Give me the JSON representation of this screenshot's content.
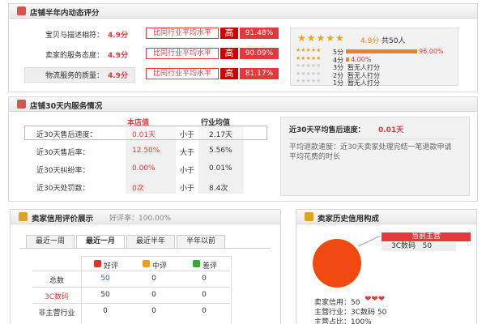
{
  "rating": {
    "title": "店铺半年内动态评分",
    "rows": [
      {
        "label": "宝贝与描述相符：",
        "score": "4.9分",
        "compare": "比同行业平均水平",
        "level": "高",
        "percent": "91.48%"
      },
      {
        "label": "卖家的服务态度：",
        "score": "4.9分",
        "compare": "比同行业平均水平",
        "level": "高",
        "percent": "90.09%"
      },
      {
        "label": "物流服务的质量：",
        "score": "4.9分",
        "compare": "比同行业平均水平",
        "level": "高",
        "percent": "81.17%"
      }
    ],
    "summary": {
      "score": "4.9分",
      "count": "共50人",
      "dist": [
        {
          "label": "5分",
          "text": "96.00%"
        },
        {
          "label": "4分",
          "text": "4.00%"
        },
        {
          "label": "3分",
          "text": "暂无人打分"
        },
        {
          "label": "2分",
          "text": "暂无人打分"
        },
        {
          "label": "1分",
          "text": "暂无人打分"
        }
      ]
    }
  },
  "service": {
    "title": "店铺30天内服务情况",
    "headers": [
      "本店值",
      "行业均值"
    ],
    "rows": [
      {
        "label": "近30天售后速度：",
        "value": "0.01天",
        "relation": "小于",
        "average": "2.17天"
      },
      {
        "label": "近30天售后率：",
        "value": "12.50%",
        "relation": "大于",
        "average": "5.56%"
      },
      {
        "label": "近30天纠纷率：",
        "value": "0.00%",
        "relation": "小于",
        "average": "0.01%"
      },
      {
        "label": "近30天处罚数：",
        "value": "0次",
        "relation": "小于",
        "average": "8.4次"
      }
    ],
    "detail": {
      "title": "近30天平均售后速度：",
      "value": "0.01天",
      "desc": "平均退款速度：近30天卖家处理完结一笔退款申请平均花费的时长"
    }
  },
  "credit": {
    "title": "卖家信用评价展示",
    "rate": "好评率：100.00%",
    "tabs": [
      "最近一周",
      "最近一月",
      "最近半年",
      "半年以前"
    ],
    "headers": [
      "好评",
      "中评",
      "差评"
    ],
    "rows": [
      [
        "总数",
        "50",
        "0",
        "0"
      ],
      [
        "3C数码",
        "50",
        "0",
        "0"
      ],
      [
        "非主营行业",
        "0",
        "0",
        "0"
      ]
    ]
  },
  "history": {
    "title": "卖家历史信用构成",
    "main_label": "当前主营",
    "main_item": "3C数码",
    "main_value": "50",
    "lines": [
      "卖家信用：50",
      "主营行业：3C数码 50",
      "主营占比：100%"
    ]
  }
}
